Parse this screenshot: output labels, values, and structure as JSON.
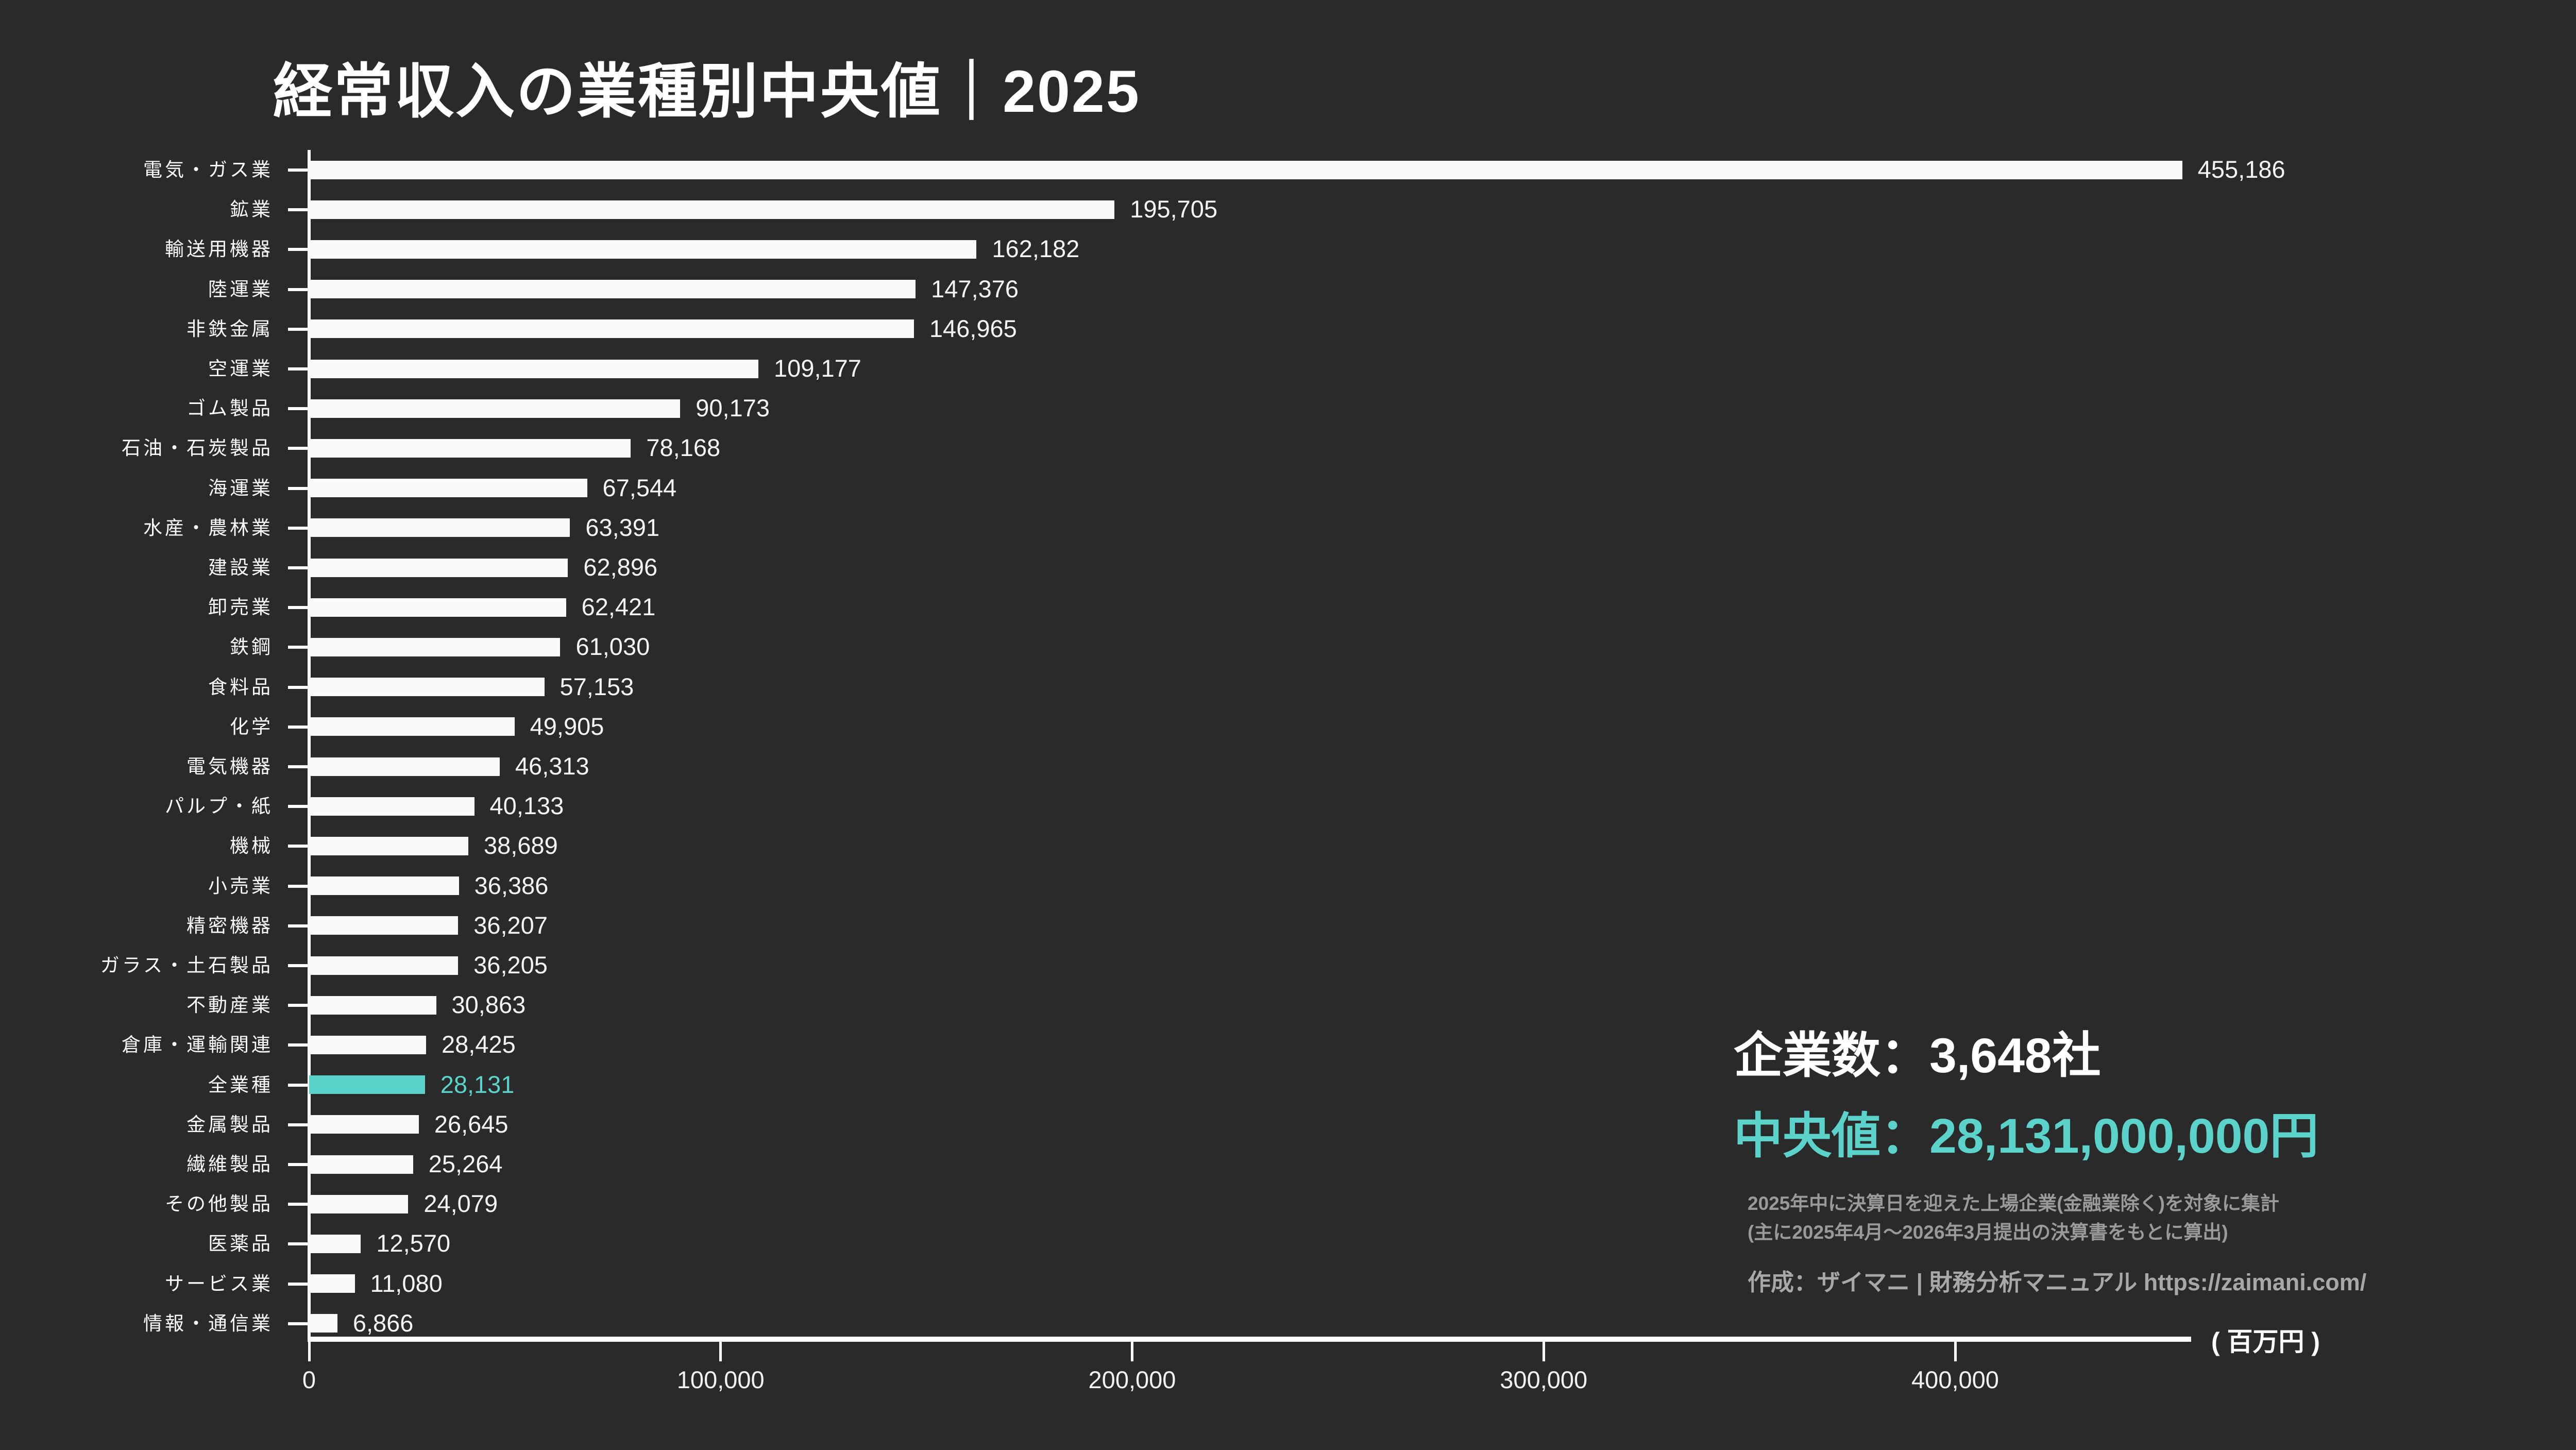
{
  "title": "経常収入の業種別中央値｜2025",
  "chart_data": {
    "type": "bar",
    "orientation": "horizontal",
    "title": "経常収入の業種別中央値｜2025",
    "unit_label": "( 百万円 )",
    "bar_color": "#fafafa",
    "highlight_color": "#5cd3ca",
    "highlight_category": "全業種",
    "categories": [
      "電気・ガス業",
      "鉱業",
      "輸送用機器",
      "陸運業",
      "非鉄金属",
      "空運業",
      "ゴム製品",
      "石油・石炭製品",
      "海運業",
      "水産・農林業",
      "建設業",
      "卸売業",
      "鉄鋼",
      "食料品",
      "化学",
      "電気機器",
      "パルプ・紙",
      "機械",
      "小売業",
      "精密機器",
      "ガラス・土石製品",
      "不動産業",
      "倉庫・運輸関連",
      "全業種",
      "金属製品",
      "繊維製品",
      "その他製品",
      "医薬品",
      "サービス業",
      "情報・通信業"
    ],
    "values": [
      455186,
      195705,
      162182,
      147376,
      146965,
      109177,
      90173,
      78168,
      67544,
      63391,
      62896,
      62421,
      61030,
      57153,
      49905,
      46313,
      40133,
      38689,
      36386,
      36207,
      36205,
      30863,
      28425,
      28131,
      26645,
      25264,
      24079,
      12570,
      11080,
      6866
    ],
    "x_ticks": [
      0,
      100000,
      200000,
      300000,
      400000
    ],
    "x_tick_labels": [
      "0",
      "100,000",
      "200,000",
      "300,000",
      "400,000"
    ],
    "xlim": [
      0,
      457000
    ],
    "grid": false,
    "legend": false
  },
  "summary": {
    "companies_label": "企業数：3,648社",
    "median_label": "中央値：28,131,000,000円",
    "note_line1": "2025年中に決算日を迎えた上場企業(金融業除く)を対象に集計",
    "note_line2": "(主に2025年4月〜2026年3月提出の決算書をもとに算出)",
    "credit": "作成：ザイマニ | 財務分析マニュアル https://zaimani.com/"
  }
}
